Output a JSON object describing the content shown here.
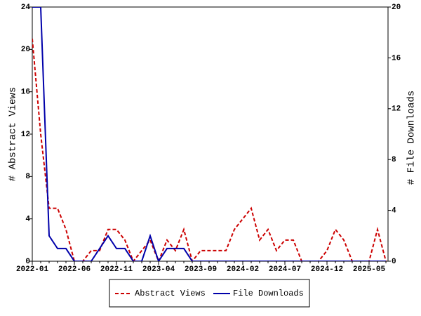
{
  "chart_data": {
    "type": "line",
    "x_label": null,
    "y_label": "# Abstract Views",
    "y2_label": "# File Downloads",
    "categories": [
      "2022-01",
      null,
      null,
      null,
      null,
      "2022-06",
      null,
      null,
      null,
      null,
      "2022-11",
      null,
      null,
      null,
      null,
      "2023-04",
      null,
      null,
      null,
      null,
      "2023-09",
      null,
      null,
      null,
      null,
      "2024-02",
      null,
      null,
      null,
      null,
      "2024-07",
      null,
      null,
      null,
      null,
      "2024-12",
      null,
      null,
      null,
      null,
      "2025-05",
      null,
      null
    ],
    "series": [
      {
        "name": "Abstract Views",
        "color": "#cc0000",
        "dashed": true,
        "axis": "y",
        "values": [
          21,
          12,
          5,
          5,
          3,
          0,
          0,
          1,
          1,
          3,
          3,
          2,
          0,
          1,
          2,
          0,
          2,
          1,
          3,
          0,
          1,
          1,
          1,
          1,
          3,
          4,
          5,
          2,
          3,
          1,
          2,
          2,
          0,
          0,
          0,
          1,
          3,
          2,
          0,
          0,
          0,
          3,
          0
        ]
      },
      {
        "name": "File Downloads",
        "color": "#0000aa",
        "dashed": false,
        "axis": "y2",
        "values": [
          20,
          20,
          2,
          1,
          1,
          0,
          0,
          0,
          1,
          2,
          1,
          1,
          0,
          0,
          2,
          0,
          1,
          1,
          1,
          0,
          0,
          0,
          0,
          0,
          0,
          0,
          0,
          0,
          0,
          0,
          0,
          0,
          0,
          0,
          0,
          0,
          0,
          0,
          0,
          0,
          0,
          0,
          0
        ]
      }
    ],
    "ylim": [
      0,
      24
    ],
    "yticks": [
      0,
      4,
      8,
      12,
      16,
      20,
      24
    ],
    "y2lim": [
      0,
      20
    ],
    "y2ticks": [
      0,
      4,
      8,
      12,
      16,
      20
    ]
  }
}
